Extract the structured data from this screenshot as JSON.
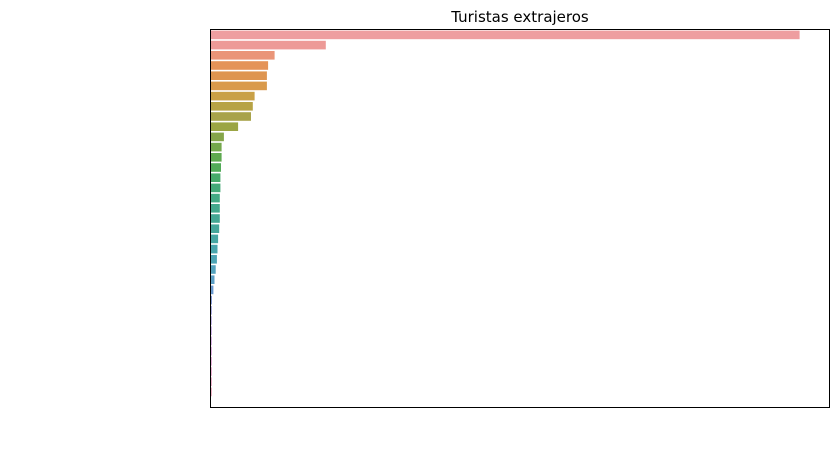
{
  "chart_data": {
    "type": "bar",
    "orientation": "horizontal",
    "title": "Turistas extrajeros",
    "xlabel": "",
    "ylabel": "",
    "xlim": [
      0,
      1.05
    ],
    "grid": false,
    "ticks_visible": false,
    "values": [
      1.0,
      0.195,
      0.108,
      0.097,
      0.095,
      0.095,
      0.074,
      0.071,
      0.068,
      0.046,
      0.022,
      0.018,
      0.018,
      0.017,
      0.016,
      0.016,
      0.015,
      0.015,
      0.015,
      0.014,
      0.012,
      0.011,
      0.01,
      0.008,
      0.006,
      0.004,
      0.0015,
      0.0012,
      0.001,
      0.0008,
      0.0007,
      0.0006,
      0.0005,
      0.0004,
      0.0003,
      0.0002
    ],
    "colors": [
      "#ee9ea0",
      "#ed9a97",
      "#ea9578",
      "#e49358",
      "#de9550",
      "#d99a4c",
      "#c9a046",
      "#b7a345",
      "#a8a34b",
      "#9ba544",
      "#85a54a",
      "#74a84c",
      "#5ea94f",
      "#52ab58",
      "#47aa6a",
      "#44a978",
      "#43a984",
      "#43a88c",
      "#44a793",
      "#45a69a",
      "#46a6a2",
      "#49a5ac",
      "#4da4b4",
      "#54a2bd",
      "#5c9fc5",
      "#6a9ad0",
      "#7b95d6",
      "#8c8ed9",
      "#9d89da",
      "#ae84d8",
      "#be80d3",
      "#cb7dca",
      "#d67cbe",
      "#de7cb2",
      "#e27ea8",
      "#e5839f"
    ]
  }
}
